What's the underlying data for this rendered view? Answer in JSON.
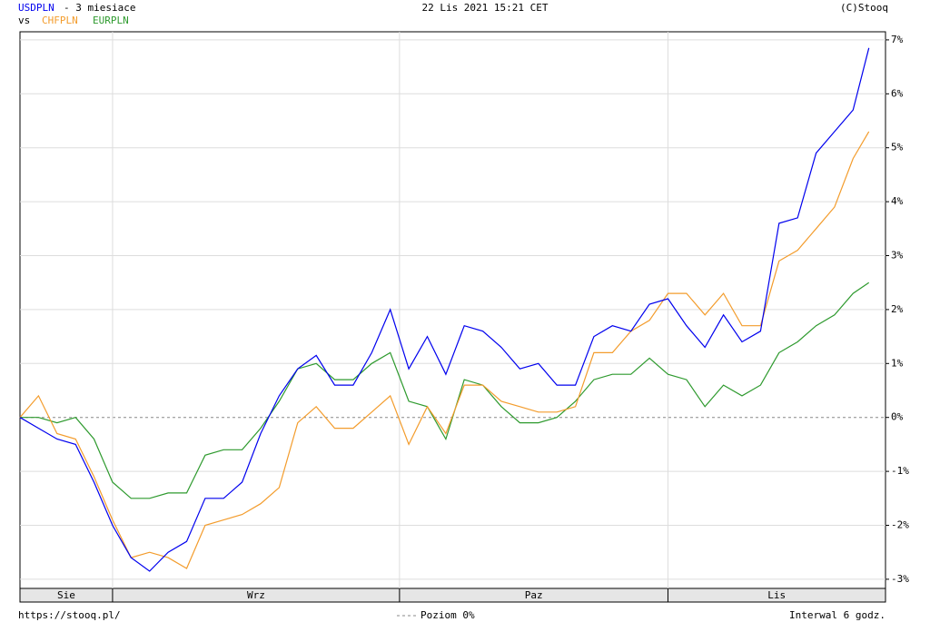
{
  "chart_data": {
    "type": "line",
    "period": "- 3 miesiace",
    "vs": "vs",
    "datetime": "22 Lis 2021 15:21 CET",
    "copyright": "(C)Stooq",
    "footer_url": "https://stooq.pl/",
    "zero_legend": "Poziom 0%",
    "interval": "Interwal 6 godz.",
    "categories": [
      "Sie",
      "Wrz",
      "Paz",
      "Lis"
    ],
    "xgrid": [
      10,
      41,
      70
    ],
    "xlim": [
      0,
      93.5
    ],
    "ylim": [
      -3.17,
      7.15
    ],
    "yticks": [
      {
        "value": 7,
        "label": "7%"
      },
      {
        "value": 6,
        "label": "6%"
      },
      {
        "value": 5,
        "label": "5%"
      },
      {
        "value": 4,
        "label": "4%"
      },
      {
        "value": 3,
        "label": "3%"
      },
      {
        "value": 2,
        "label": "2%"
      },
      {
        "value": 1,
        "label": "1%"
      },
      {
        "value": 0,
        "label": "0%"
      },
      {
        "value": -1,
        "label": "-1%"
      },
      {
        "value": -2,
        "label": "-2%"
      },
      {
        "value": -3,
        "label": "-3%"
      }
    ],
    "grid": true,
    "x": [
      0,
      2,
      4,
      6,
      8,
      10,
      12,
      14,
      16,
      18,
      20,
      22,
      24,
      26,
      28,
      30,
      32,
      34,
      36,
      38,
      40,
      42,
      44,
      46,
      48,
      50,
      52,
      54,
      56,
      58,
      60,
      62,
      64,
      66,
      68,
      70,
      72,
      74,
      76,
      78,
      80,
      82,
      84,
      86,
      88,
      90,
      91.7
    ],
    "series": [
      {
        "name": "USDPLN",
        "color": "#0000ee",
        "values": [
          0,
          -0.2,
          -0.4,
          -0.5,
          -1.2,
          -2.0,
          -2.6,
          -2.85,
          -2.5,
          -2.3,
          -1.5,
          -1.5,
          -1.2,
          -0.3,
          0.4,
          0.9,
          1.15,
          0.6,
          0.6,
          1.2,
          2.0,
          0.9,
          1.5,
          0.8,
          1.7,
          1.6,
          1.3,
          0.9,
          1.0,
          0.6,
          0.6,
          1.5,
          1.7,
          1.6,
          2.1,
          2.2,
          1.7,
          1.3,
          1.9,
          1.4,
          1.6,
          3.6,
          3.7,
          4.9,
          5.3,
          5.7,
          6.85
        ]
      },
      {
        "name": "CHFPLN",
        "color": "#f39c2c",
        "values": [
          0,
          0.4,
          -0.3,
          -0.4,
          -1.1,
          -1.9,
          -2.6,
          -2.5,
          -2.6,
          -2.8,
          -2.0,
          -1.9,
          -1.8,
          -1.6,
          -1.3,
          -0.1,
          0.2,
          -0.2,
          -0.2,
          0.1,
          0.4,
          -0.5,
          0.2,
          -0.3,
          0.6,
          0.6,
          0.3,
          0.2,
          0.1,
          0.1,
          0.2,
          1.2,
          1.2,
          1.6,
          1.8,
          2.3,
          2.3,
          1.9,
          2.3,
          1.7,
          1.7,
          2.9,
          3.1,
          3.5,
          3.9,
          4.8,
          5.3
        ]
      },
      {
        "name": "EURPLN",
        "color": "#2e9a2e",
        "values": [
          0,
          0.0,
          -0.1,
          0.0,
          -0.4,
          -1.2,
          -1.5,
          -1.5,
          -1.4,
          -1.4,
          -0.7,
          -0.6,
          -0.6,
          -0.2,
          0.3,
          0.9,
          1.0,
          0.7,
          0.7,
          1.0,
          1.2,
          0.3,
          0.2,
          -0.4,
          0.7,
          0.6,
          0.2,
          -0.1,
          -0.1,
          0.0,
          0.3,
          0.7,
          0.8,
          0.8,
          1.1,
          0.8,
          0.7,
          0.2,
          0.6,
          0.4,
          0.6,
          1.2,
          1.4,
          1.7,
          1.9,
          2.3,
          2.5
        ]
      }
    ]
  }
}
